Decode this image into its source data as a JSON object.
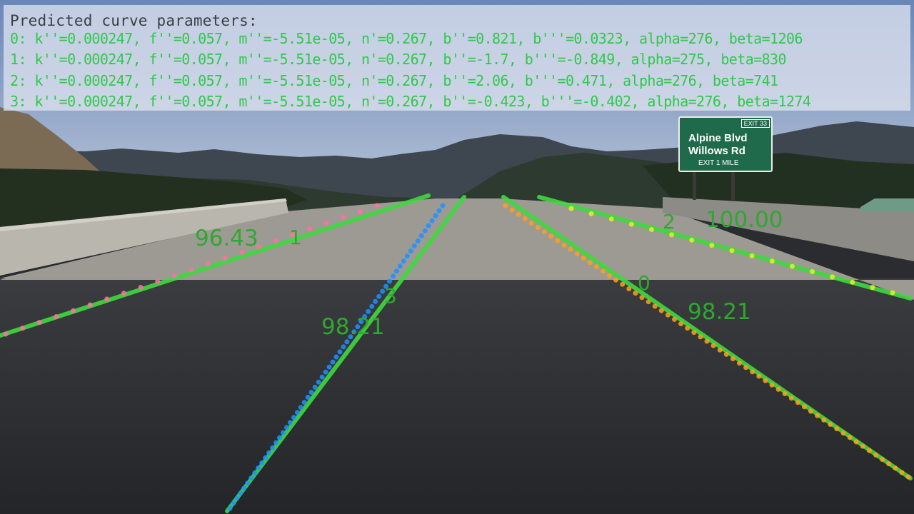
{
  "panel": {
    "title": "Predicted curve parameters:",
    "rows": [
      "0: k''=0.000247, f''=0.057, m''=-5.51e-05, n'=0.267, b''=0.821, b'''=0.0323, alpha=276, beta=1206",
      "1: k''=0.000247, f''=0.057, m''=-5.51e-05, n'=0.267, b''=-1.7, b'''=-0.849, alpha=275, beta=830",
      "2: k''=0.000247, f''=0.057, m''=-5.51e-05, n'=0.267, b''=2.06, b'''=0.471, alpha=276, beta=741",
      "3: k''=0.000247, f''=0.057, m''=-5.51e-05, n'=0.267, b''=-0.423, b'''=-0.402, alpha=276, beta=1274"
    ]
  },
  "sign": {
    "exit_tab": "EXIT 33",
    "line1": "Alpine Blvd",
    "line2": "Willows Rd",
    "line3": "EXIT 1 MILE"
  },
  "lanes": [
    {
      "id": "1",
      "score": "96.43"
    },
    {
      "id": "3",
      "score": "98.21"
    },
    {
      "id": "0",
      "score": "98.21"
    },
    {
      "id": "2",
      "score": "100.00"
    }
  ],
  "colors": {
    "prediction_line": "#3fd93f",
    "label_text": "#2fa82f",
    "param_text": "#2ec94a",
    "gt_lane1": "#ff6fa8",
    "gt_lane3": "#1e90ff",
    "gt_lane0": "#ff9f1a",
    "gt_lane2": "#e6f020"
  }
}
